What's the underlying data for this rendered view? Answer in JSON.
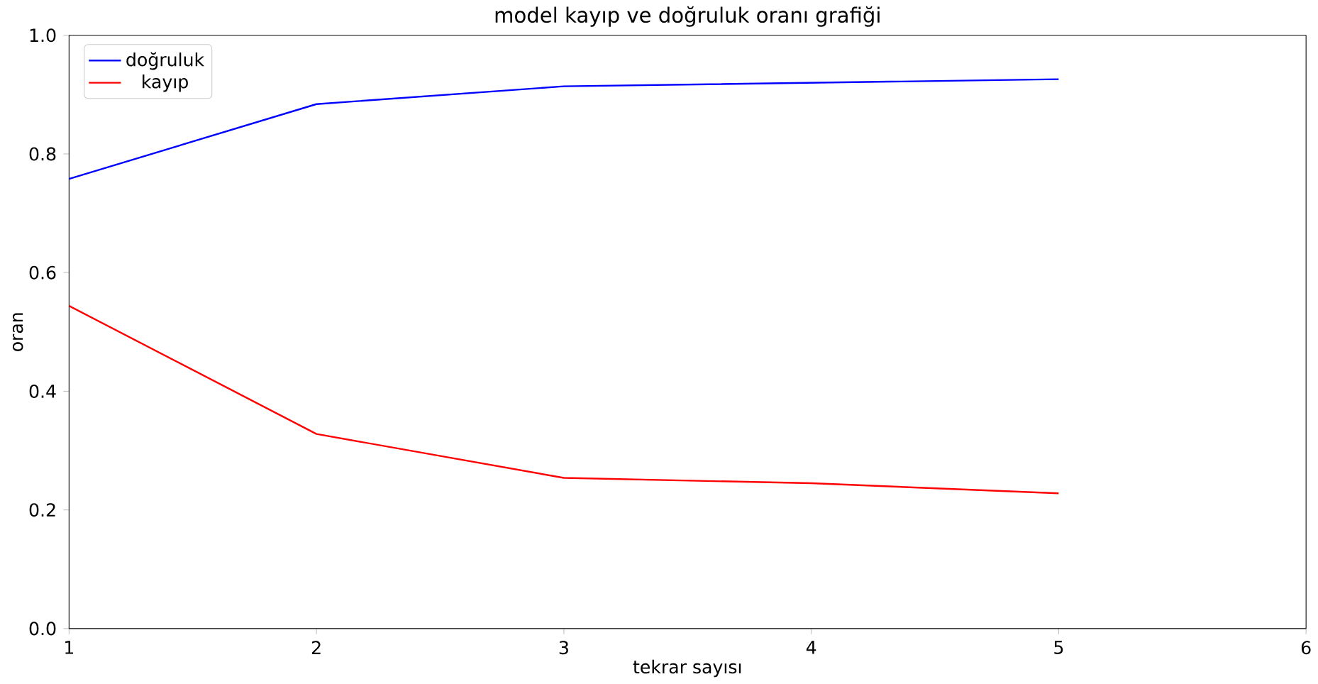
{
  "chart_data": {
    "type": "line",
    "title": "model kayıp ve doğruluk oranı grafiği",
    "xlabel": "tekrar sayısı",
    "ylabel": "oran",
    "x": [
      1,
      2,
      3,
      4,
      5
    ],
    "series": [
      {
        "name": "doğruluk",
        "color": "#0000ff",
        "values": [
          0.758,
          0.884,
          0.914,
          0.92,
          0.926
        ]
      },
      {
        "name": "kayıp",
        "color": "#ff0000",
        "values": [
          0.544,
          0.328,
          0.254,
          0.245,
          0.228
        ]
      }
    ],
    "xlim": [
      1,
      6
    ],
    "ylim": [
      0,
      1
    ],
    "xticks": [
      1,
      2,
      3,
      4,
      5,
      6
    ],
    "yticks": [
      {
        "value": 0,
        "label": "0.0"
      },
      {
        "value": 0.2,
        "label": "0.2"
      },
      {
        "value": 0.4,
        "label": "0.4"
      },
      {
        "value": 0.6,
        "label": "0.6"
      },
      {
        "value": 0.8,
        "label": "0.8"
      },
      {
        "value": 1,
        "label": "1.0"
      }
    ],
    "legend": "top left"
  }
}
